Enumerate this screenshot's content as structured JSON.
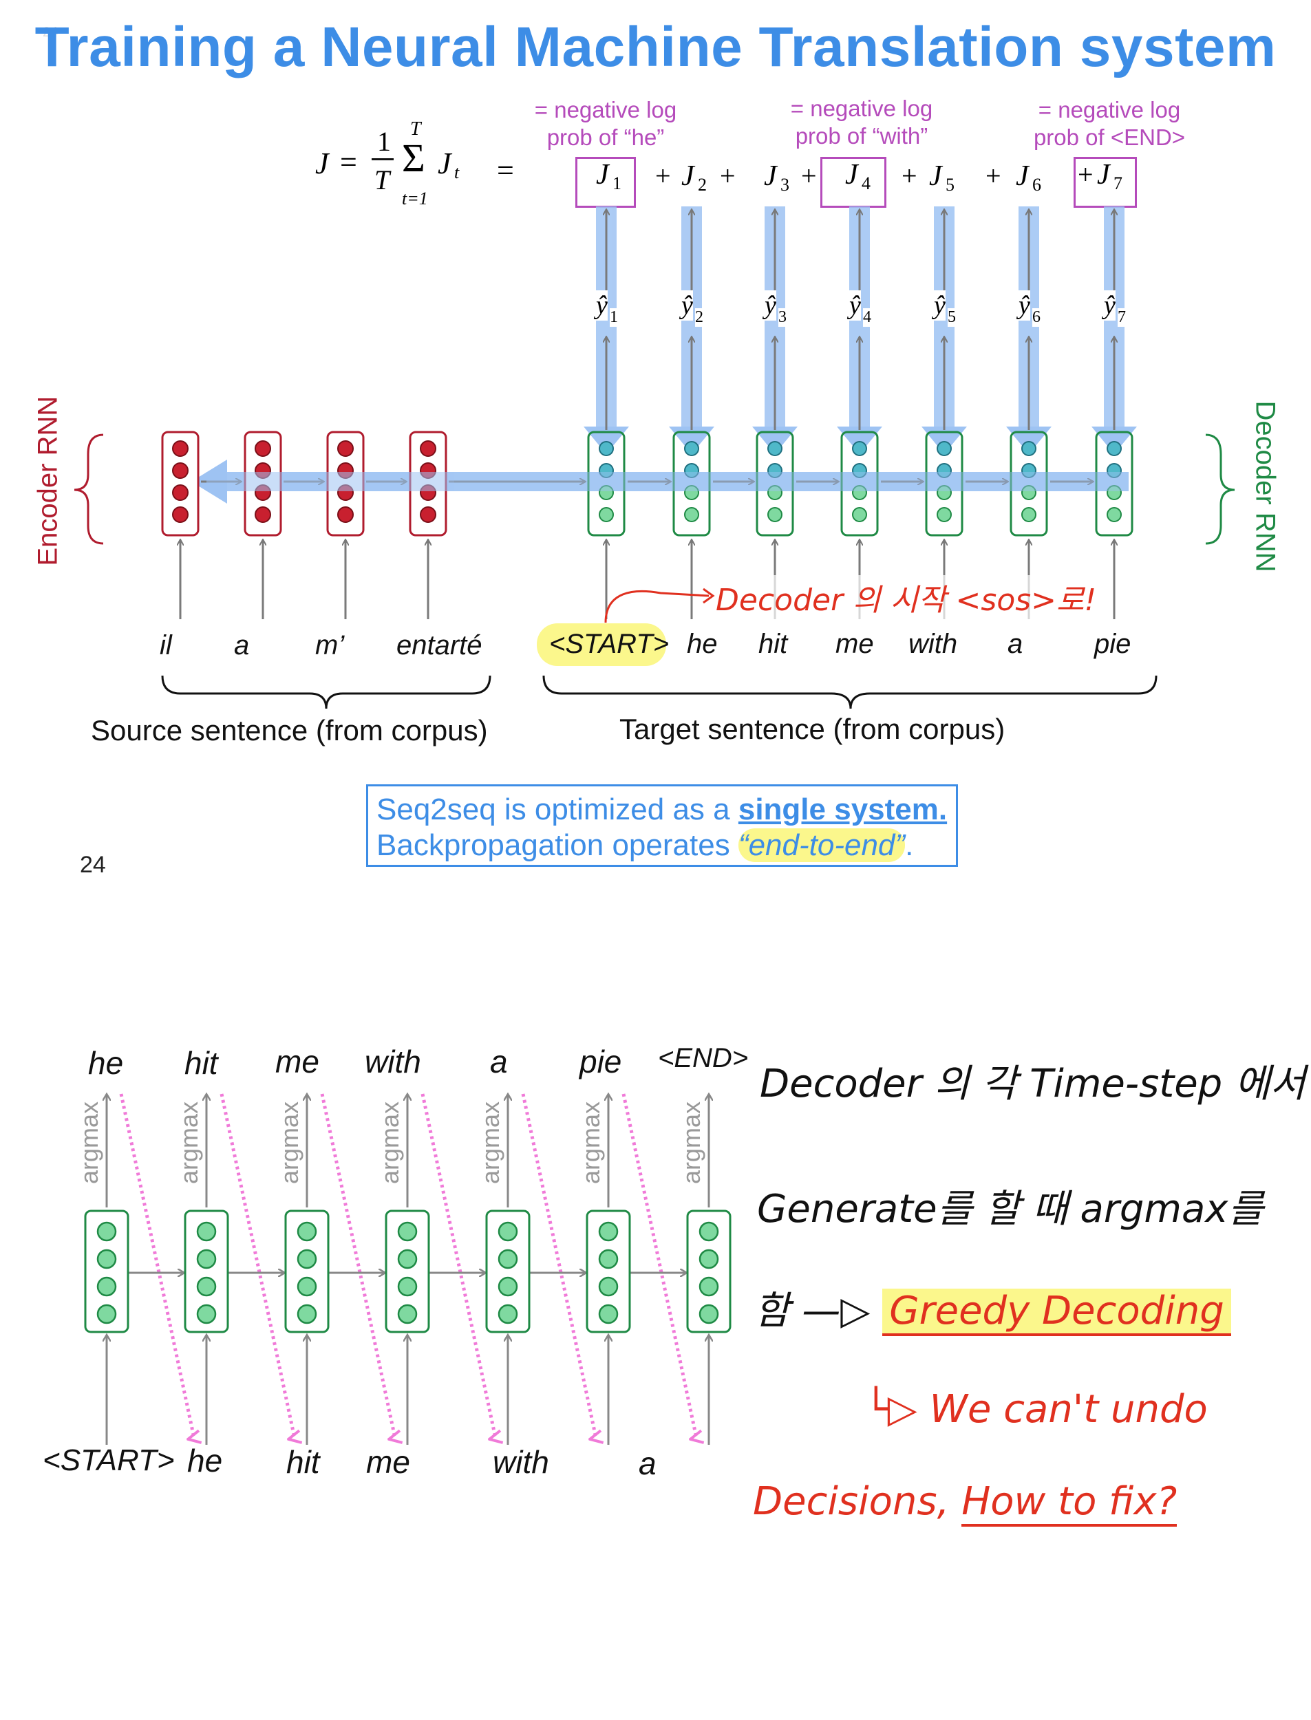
{
  "slide_number_tiny": "24",
  "title": "Training a Neural Machine Translation system",
  "loss": {
    "J": "J",
    "equals": "=",
    "frac_num": "1",
    "frac_den": "T",
    "sum": "Σ",
    "sum_upper": "T",
    "sum_lower": "t=1",
    "Jt": "J",
    "Jt_sub": "t",
    "rhs_equals": "=",
    "plus": "+",
    "terms": [
      "J",
      "J",
      "J",
      "J",
      "J",
      "J",
      "J"
    ],
    "term_subs": [
      "1",
      "2",
      "3",
      "4",
      "5",
      "6",
      "7"
    ]
  },
  "annotations": [
    {
      "line1": "= negative log",
      "line2": "prob of “he”"
    },
    {
      "line1": "= negative log",
      "line2": "prob of “with”"
    },
    {
      "line1": "= negative log",
      "line2": "prob of <END>"
    }
  ],
  "yhat": {
    "symbol": "ŷ",
    "subs": [
      "1",
      "2",
      "3",
      "4",
      "5",
      "6",
      "7"
    ]
  },
  "encoder_label": "Encoder RNN",
  "decoder_label": "Decoder RNN",
  "source_words": [
    "il",
    "a",
    "m’",
    "entarté"
  ],
  "target_words": [
    "<START>",
    "he",
    "hit",
    "me",
    "with",
    "a",
    "pie"
  ],
  "source_caption": "Source sentence (from corpus)",
  "target_caption": "Target sentence (from corpus)",
  "handwritten_top": "Decoder 의 시작 <sos>로!",
  "note": {
    "line1_prefix": "Seq2seq is optimized as a ",
    "line1_link": "single system.",
    "line2_prefix": "Backpropagation operates ",
    "line2_quote": "“end-to-end”",
    "line2_suffix": "."
  },
  "page_number": "24",
  "greedy": {
    "outputs": [
      "he",
      "hit",
      "me",
      "with",
      "a",
      "pie",
      "<END>"
    ],
    "inputs": [
      "<START>",
      "he",
      "hit",
      "me",
      "with",
      "a"
    ],
    "argmax_label": "argmax"
  },
  "handwritten_notes": {
    "line1": "Decoder 의   각 Time-step 에서",
    "line2": "Generate를 할 때 argmax를",
    "line3_prefix": "함 —▷",
    "line3_highlight": "Greedy Decoding",
    "line4": "└▷ We can't undo",
    "line5_prefix": "Decisions, ",
    "line5_suffix": "How to fix?"
  },
  "colors": {
    "title_blue": "#3d8de6",
    "annotation_purple": "#b54bbb",
    "encoder_red": "#b01c2e",
    "decoder_green": "#1f8a45",
    "arrow_blue": "#8fb8f0",
    "pink_arrow": "#f07ad8",
    "ink_red": "#e0301f",
    "highlight_yellow": "#fbf78c"
  }
}
